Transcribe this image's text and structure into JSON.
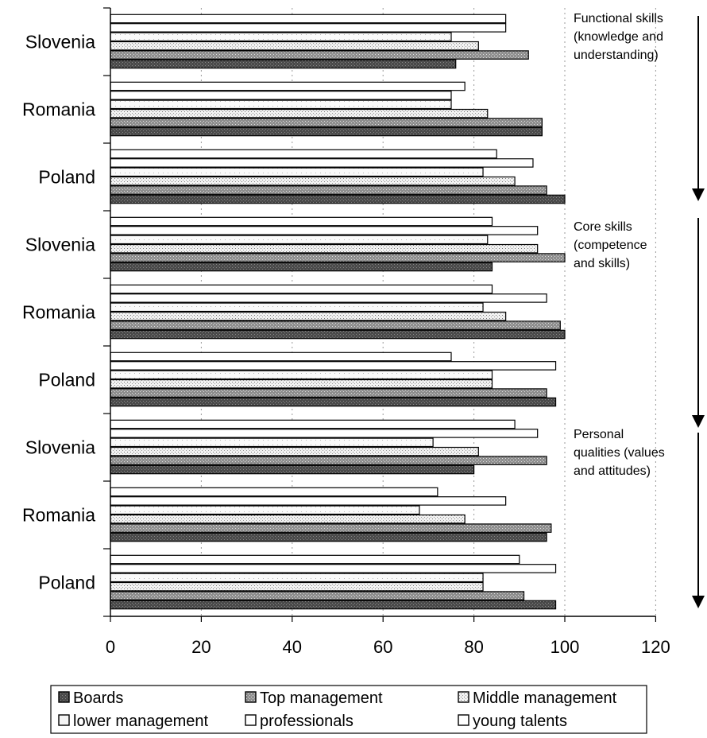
{
  "chart_data": {
    "type": "bar",
    "orientation": "horizontal",
    "categories": [
      "Slovenia",
      "Romania",
      "Poland",
      "Slovenia",
      "Romania",
      "Poland",
      "Slovenia",
      "Romania",
      "Poland"
    ],
    "series": [
      {
        "name": "Boards",
        "color": "#555555",
        "values": [
          76,
          95,
          100,
          84,
          100,
          98,
          80,
          96,
          98
        ]
      },
      {
        "name": "Top management",
        "color": "#9a9a9a",
        "values": [
          92,
          95,
          96,
          100,
          99,
          96,
          96,
          97,
          91
        ]
      },
      {
        "name": "Middle management",
        "color": "#cfcfcf",
        "values": [
          81,
          83,
          89,
          94,
          87,
          84,
          81,
          78,
          82
        ]
      },
      {
        "name": "lower management",
        "color": "#ececec",
        "values": [
          75,
          75,
          82,
          83,
          82,
          84,
          71,
          68,
          82
        ]
      },
      {
        "name": "professionals",
        "color": "#ffffff",
        "values": [
          87,
          75,
          93,
          94,
          96,
          98,
          94,
          87,
          98
        ]
      },
      {
        "name": "young talents",
        "color": "#ffffff",
        "values": [
          87,
          78,
          85,
          84,
          84,
          75,
          89,
          72,
          90
        ]
      }
    ],
    "xlim": [
      0,
      120
    ],
    "xticks": [
      "0",
      "20",
      "40",
      "60",
      "80",
      "100",
      "120"
    ],
    "grid": "vertical dashed",
    "legend_position": "bottom",
    "group_annotations": [
      {
        "lines": [
          "Functional skills",
          "(knowledge and",
          "understanding)"
        ]
      },
      {
        "lines": [
          "Core skills",
          "(competence",
          "and skills)"
        ]
      },
      {
        "lines": [
          "Personal",
          "qualities (values",
          "and attitudes)"
        ]
      }
    ]
  }
}
